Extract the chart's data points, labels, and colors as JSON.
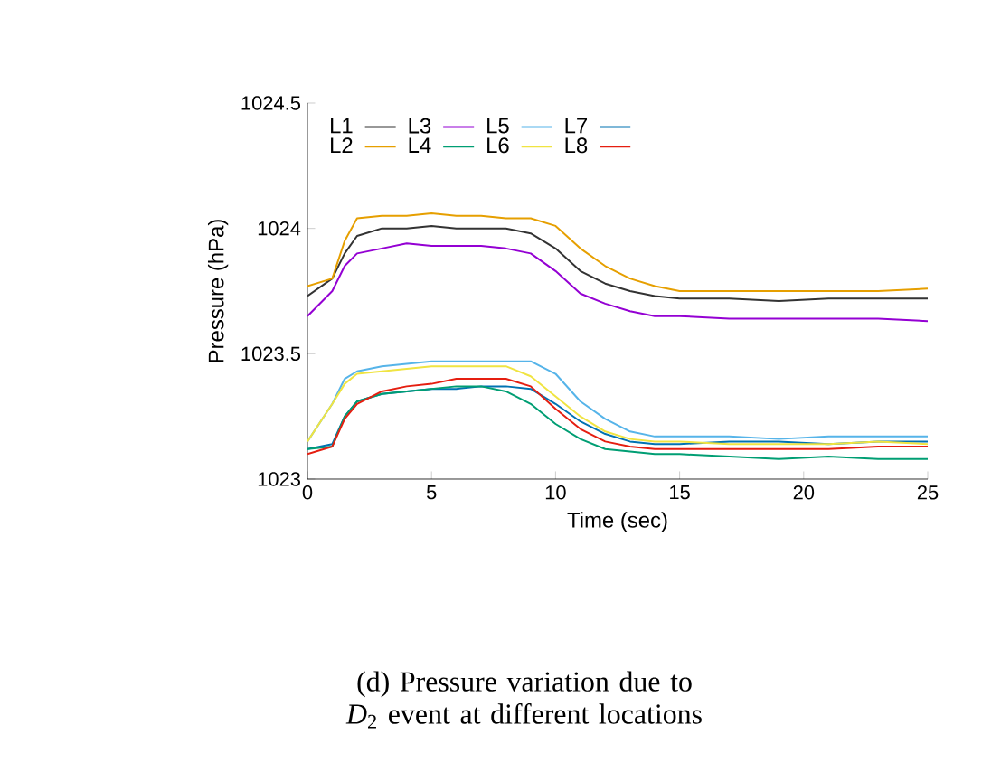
{
  "chart_data": {
    "type": "line",
    "title": "(d) Pressure variation due to *D*$_{2}$ event at different locations",
    "xlabel": "Time (sec)",
    "ylabel": "Pressure (hPa)",
    "x": [
      0,
      1,
      1.5,
      2,
      3,
      4,
      5,
      6,
      7,
      8,
      9,
      10,
      11,
      12,
      13,
      14,
      15,
      17,
      19,
      21,
      23,
      25
    ],
    "xlim": [
      0,
      25
    ],
    "ylim": [
      1023,
      1024.5
    ],
    "xticks": [
      0,
      5,
      10,
      15,
      20,
      25
    ],
    "yticks": [
      1023,
      1023.5,
      1024,
      1024.5
    ],
    "legend": "top left",
    "line_style": "solid",
    "marker": "none",
    "grid": false,
    "series": [
      {
        "name": "L1",
        "color": "#333333",
        "values": [
          1023.73,
          1023.8,
          1023.9,
          1023.97,
          1024.0,
          1024.0,
          1024.01,
          1024.0,
          1024.0,
          1024.0,
          1023.98,
          1023.92,
          1023.83,
          1023.78,
          1023.75,
          1023.73,
          1023.72,
          1023.72,
          1023.71,
          1023.72,
          1023.72,
          1023.72
        ]
      },
      {
        "name": "L2",
        "color": "#e69f00",
        "values": [
          1023.77,
          1023.8,
          1023.95,
          1024.04,
          1024.05,
          1024.05,
          1024.06,
          1024.05,
          1024.05,
          1024.04,
          1024.04,
          1024.01,
          1023.92,
          1023.85,
          1023.8,
          1023.77,
          1023.75,
          1023.75,
          1023.75,
          1023.75,
          1023.75,
          1023.76
        ]
      },
      {
        "name": "L3",
        "color": "#9400d3",
        "values": [
          1023.65,
          1023.75,
          1023.85,
          1023.9,
          1023.92,
          1023.94,
          1023.93,
          1023.93,
          1023.93,
          1023.92,
          1023.9,
          1023.83,
          1023.74,
          1023.7,
          1023.67,
          1023.65,
          1023.65,
          1023.64,
          1023.64,
          1023.64,
          1023.64,
          1023.63
        ]
      },
      {
        "name": "L4",
        "color": "#009e73",
        "values": [
          1023.12,
          1023.13,
          1023.25,
          1023.31,
          1023.34,
          1023.35,
          1023.36,
          1023.37,
          1023.37,
          1023.35,
          1023.3,
          1023.22,
          1023.16,
          1023.12,
          1023.11,
          1023.1,
          1023.1,
          1023.09,
          1023.08,
          1023.09,
          1023.08,
          1023.08
        ]
      },
      {
        "name": "L5",
        "color": "#56b4e9",
        "values": [
          1023.15,
          1023.3,
          1023.4,
          1023.43,
          1023.45,
          1023.46,
          1023.47,
          1023.47,
          1023.47,
          1023.47,
          1023.47,
          1023.42,
          1023.31,
          1023.24,
          1023.19,
          1023.17,
          1023.17,
          1023.17,
          1023.16,
          1023.17,
          1023.17,
          1023.17
        ]
      },
      {
        "name": "L6",
        "color": "#f0e442",
        "values": [
          1023.15,
          1023.3,
          1023.38,
          1023.42,
          1023.43,
          1023.44,
          1023.45,
          1023.45,
          1023.45,
          1023.45,
          1023.41,
          1023.33,
          1023.25,
          1023.19,
          1023.16,
          1023.15,
          1023.15,
          1023.14,
          1023.14,
          1023.14,
          1023.15,
          1023.14
        ]
      },
      {
        "name": "L7",
        "color": "#0072b2",
        "values": [
          1023.12,
          1023.14,
          1023.25,
          1023.31,
          1023.34,
          1023.35,
          1023.36,
          1023.36,
          1023.37,
          1023.37,
          1023.36,
          1023.3,
          1023.23,
          1023.18,
          1023.15,
          1023.14,
          1023.14,
          1023.15,
          1023.15,
          1023.14,
          1023.15,
          1023.15
        ]
      },
      {
        "name": "L8",
        "color": "#e51e10",
        "values": [
          1023.1,
          1023.13,
          1023.24,
          1023.3,
          1023.35,
          1023.37,
          1023.38,
          1023.4,
          1023.4,
          1023.4,
          1023.37,
          1023.28,
          1023.2,
          1023.15,
          1023.13,
          1023.12,
          1023.12,
          1023.12,
          1023.12,
          1023.12,
          1023.13,
          1023.13
        ]
      }
    ]
  }
}
